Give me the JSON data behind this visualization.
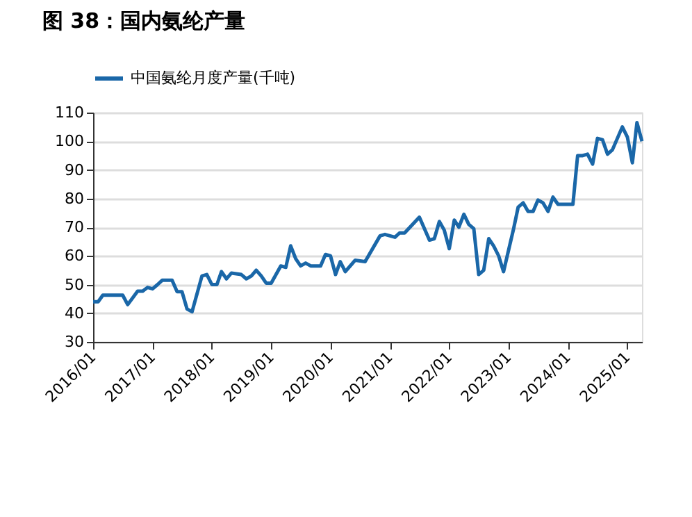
{
  "chart_data": {
    "type": "line",
    "title": "图 38：国内氨纶产量",
    "legend": "top",
    "grid": "y",
    "marker": "none",
    "line_style": "solid",
    "ylim": [
      30,
      110
    ],
    "yticks": [
      30,
      40,
      50,
      60,
      70,
      80,
      90,
      100,
      110
    ],
    "xlim": [
      "2016-01",
      "2025-04"
    ],
    "xticks": [
      {
        "value": "2016-01",
        "label": "2016/01"
      },
      {
        "value": "2017-01",
        "label": "2017/01"
      },
      {
        "value": "2018-01",
        "label": "2018/01"
      },
      {
        "value": "2019-01",
        "label": "2019/01"
      },
      {
        "value": "2020-01",
        "label": "2020/01"
      },
      {
        "value": "2021-01",
        "label": "2021/01"
      },
      {
        "value": "2022-01",
        "label": "2022/01"
      },
      {
        "value": "2023-01",
        "label": "2023/01"
      },
      {
        "value": "2024-01",
        "label": "2024/01"
      },
      {
        "value": "2025-01",
        "label": "2025/01"
      }
    ],
    "x": [
      "2016-01",
      "2016-02",
      "2016-03",
      "2016-07",
      "2016-08",
      "2016-10",
      "2016-11",
      "2016-12",
      "2017-01",
      "2017-02",
      "2017-03",
      "2017-05",
      "2017-06",
      "2017-07",
      "2017-08",
      "2017-09",
      "2017-11",
      "2017-12",
      "2018-01",
      "2018-02",
      "2018-03",
      "2018-04",
      "2018-05",
      "2018-07",
      "2018-08",
      "2018-09",
      "2018-10",
      "2018-11",
      "2018-12",
      "2019-01",
      "2019-03",
      "2019-04",
      "2019-05",
      "2019-06",
      "2019-07",
      "2019-08",
      "2019-09",
      "2019-11",
      "2019-12",
      "2020-01",
      "2020-02",
      "2020-03",
      "2020-04",
      "2020-06",
      "2020-08",
      "2020-11",
      "2020-12",
      "2021-02",
      "2021-03",
      "2021-04",
      "2021-07",
      "2021-09",
      "2021-10",
      "2021-11",
      "2021-12",
      "2022-01",
      "2022-02",
      "2022-03",
      "2022-04",
      "2022-05",
      "2022-06",
      "2022-07",
      "2022-08",
      "2022-09",
      "2022-10",
      "2022-11",
      "2022-12",
      "2023-02",
      "2023-03",
      "2023-04",
      "2023-05",
      "2023-06",
      "2023-07",
      "2023-08",
      "2023-09",
      "2023-10",
      "2023-11",
      "2024-02",
      "2024-03",
      "2024-04",
      "2024-05",
      "2024-06",
      "2024-07",
      "2024-08",
      "2024-09",
      "2024-10",
      "2024-12",
      "2025-01",
      "2025-02",
      "2025-03",
      "2025-04"
    ],
    "series": [
      {
        "name": "中国氨纶月度产量(千吨)",
        "color": "#1a67a8",
        "values": [
          44,
          44,
          46.3,
          46.3,
          43,
          47.7,
          47.7,
          49,
          48.5,
          50,
          51.5,
          51.5,
          47.5,
          47.5,
          41.5,
          40.5,
          53,
          53.5,
          50,
          50,
          54.5,
          52,
          54,
          53.5,
          52,
          53,
          55,
          53,
          50.5,
          50.5,
          56.5,
          56,
          63.5,
          59,
          56.5,
          57.5,
          56.5,
          56.5,
          60.5,
          60,
          53.5,
          58,
          54.5,
          58.5,
          58,
          67,
          67.5,
          66.5,
          68,
          68,
          73.5,
          65.5,
          66,
          72,
          69,
          62.5,
          72.5,
          70,
          74.5,
          71,
          69.5,
          53.5,
          55,
          66,
          63.5,
          60,
          54.5,
          69.5,
          77,
          78.5,
          75.5,
          75.5,
          79.5,
          78.5,
          75.5,
          80.5,
          78,
          78,
          95,
          95,
          95.5,
          92,
          101,
          100.5,
          95.5,
          97,
          105,
          101.5,
          92.5,
          106.5,
          100
        ]
      }
    ]
  }
}
